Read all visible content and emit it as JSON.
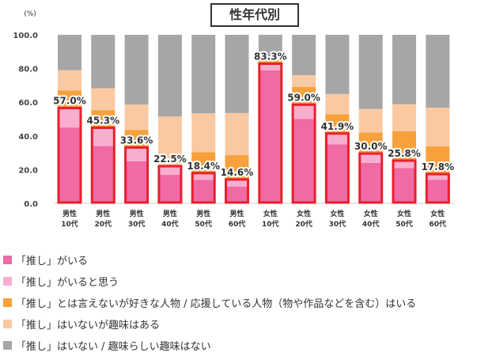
{
  "title": "性年代別",
  "chart_data": {
    "type": "bar",
    "stacked": true,
    "y_unit": "(%)",
    "ylim": [
      0,
      100
    ],
    "y_ticks": [
      "0.0",
      "20.0",
      "40.0",
      "60.0",
      "80.0",
      "100.0"
    ],
    "grid": false,
    "legend_position": "bottom",
    "categories": [
      [
        "男性",
        "10代"
      ],
      [
        "男性",
        "20代"
      ],
      [
        "男性",
        "30代"
      ],
      [
        "男性",
        "40代"
      ],
      [
        "男性",
        "50代"
      ],
      [
        "男性",
        "60代"
      ],
      [
        "女性",
        "10代"
      ],
      [
        "女性",
        "20代"
      ],
      [
        "女性",
        "30代"
      ],
      [
        "女性",
        "40代"
      ],
      [
        "女性",
        "50代"
      ],
      [
        "女性",
        "60代"
      ]
    ],
    "series": [
      {
        "name": "「推し」がいる",
        "color": "#f06aa6",
        "values": [
          45,
          34,
          25,
          17,
          14,
          10,
          79,
          50,
          35,
          24,
          21,
          14
        ]
      },
      {
        "name": "「推し」がいると思う",
        "color": "#f9aecf",
        "values": [
          12,
          11.3,
          8.6,
          5.5,
          4.4,
          4.6,
          4.3,
          9,
          6.9,
          6,
          4.8,
          3.8
        ]
      },
      {
        "name": "「推し」とは言えないが好きな人物 / 応援している人物（物や作品などを含む）はいる",
        "color": "#f7a13c",
        "values": [
          10,
          10,
          10,
          0,
          12,
          14,
          4,
          10,
          11,
          12,
          17,
          16
        ]
      },
      {
        "name": "「推し」はいないが趣味はある",
        "color": "#fbc9a1",
        "values": [
          12,
          13,
          15,
          29,
          23,
          25,
          0,
          7,
          12,
          14,
          16,
          23
        ]
      },
      {
        "name": "「推し」はいない / 趣味らしい趣味はない",
        "color": "#a6a6a6",
        "values": [
          21,
          31.7,
          41.4,
          48.5,
          46.6,
          46.4,
          12.7,
          24,
          35.1,
          44,
          41.2,
          43.2
        ]
      }
    ],
    "highlight_totals": [
      57.0,
      45.3,
      33.6,
      22.5,
      18.4,
      14.6,
      83.3,
      59.0,
      41.9,
      30.0,
      25.8,
      17.8
    ],
    "highlight_labels": [
      "57.0%",
      "45.3%",
      "33.6%",
      "22.5%",
      "18.4%",
      "14.6%",
      "83.3%",
      "59.0%",
      "41.9%",
      "30.0%",
      "25.8%",
      "17.8%"
    ],
    "highlight_color": "#e8202b"
  }
}
